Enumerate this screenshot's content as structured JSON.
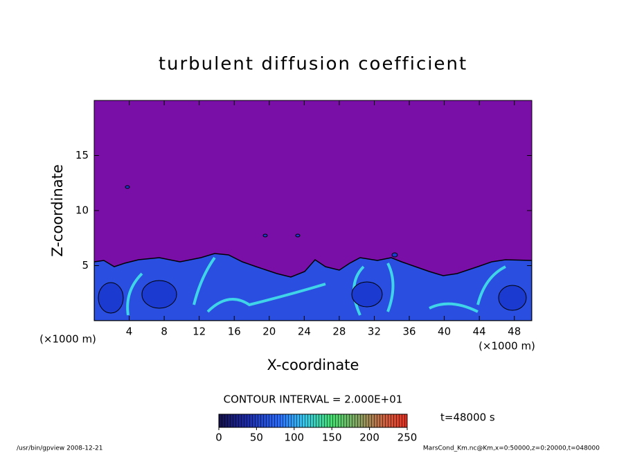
{
  "chart_data": {
    "type": "contour",
    "title": "turbulent diffusion coefficient",
    "x_label": "X-coordinate",
    "y_label": "Z-coordinate",
    "x_units": "(×1000 m)",
    "y_units": "(×1000 m)",
    "xlim": [
      0,
      50
    ],
    "xticks": [
      4,
      8,
      12,
      16,
      20,
      24,
      28,
      32,
      36,
      40,
      44,
      48
    ],
    "ylim": [
      0,
      20
    ],
    "yticks": [
      5,
      10,
      15
    ],
    "contour_interval": "CONTOUR INTERVAL = 2.000E+01",
    "colorbar": {
      "lim": [
        0,
        250
      ],
      "ticks": [
        0,
        50,
        100,
        150,
        200,
        250
      ]
    },
    "time_label": "t=48000 s",
    "footer_left": "/usr/bin/gpview  2008-12-21",
    "footer_right": "MarsCond_Km.nc@Km,x=0:50000,z=0:20000,t=048000"
  }
}
